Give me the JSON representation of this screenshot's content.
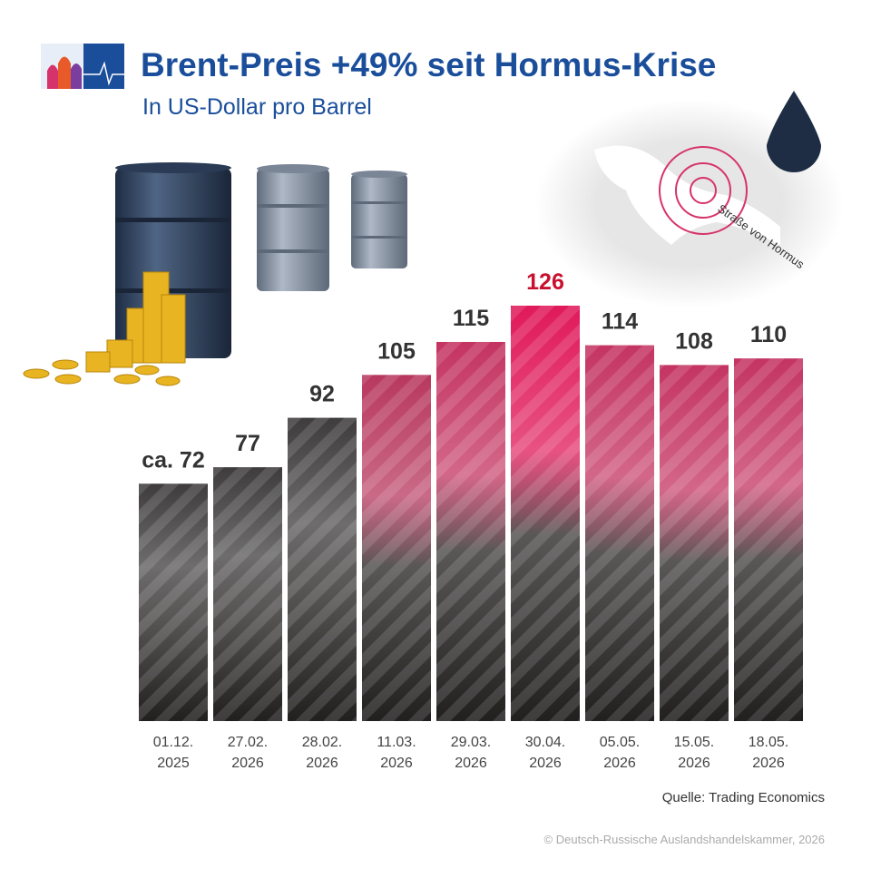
{
  "chart_data": {
    "type": "bar",
    "title": "Brent-Preis +49% seit Hormus-Krise",
    "subtitle": "In US-Dollar pro Barrel",
    "map_label": "Straße von Hormus",
    "source": "Quelle: Trading Economics",
    "copyright": "© Deutsch-Russische Auslandshandelskammer, 2026",
    "categories": [
      [
        "01.12.",
        "2025"
      ],
      [
        "27.02.",
        "2026"
      ],
      [
        "28.02.",
        "2026"
      ],
      [
        "11.03.",
        "2026"
      ],
      [
        "29.03.",
        "2026"
      ],
      [
        "30.04.",
        "2026"
      ],
      [
        "05.05.",
        "2026"
      ],
      [
        "15.05.",
        "2026"
      ],
      [
        "18.05.",
        "2026"
      ]
    ],
    "values": [
      72,
      77,
      92,
      105,
      115,
      126,
      114,
      108,
      110
    ],
    "value_labels": [
      "ca. 72",
      "77",
      "92",
      "105",
      "115",
      "126",
      "114",
      "108",
      "110"
    ],
    "colors": [
      "#3e3c3c",
      "#3e3c3c",
      "#3e3c3c",
      "#b8385f",
      "#c43462",
      "#e0195a",
      "#c43462",
      "#c43462",
      "#c43462"
    ],
    "value_label_colors": [
      "#333333",
      "#333333",
      "#333333",
      "#333333",
      "#333333",
      "#c8102e",
      "#333333",
      "#333333",
      "#333333"
    ]
  }
}
